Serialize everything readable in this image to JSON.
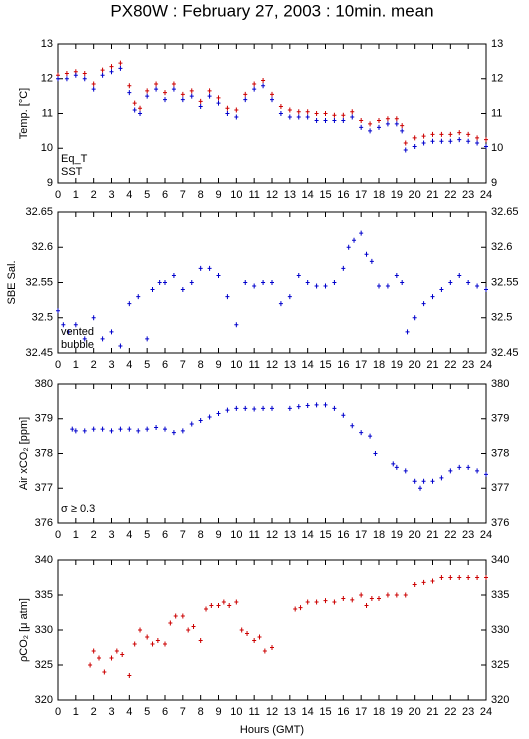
{
  "title": "PX80W : February 27, 2003 : 10min. mean",
  "xlabel": "Hours (GMT)",
  "chart_data": [
    {
      "type": "scatter",
      "ylabel": "Temp. [°C]",
      "xlim": [
        0,
        24
      ],
      "xticks": [
        0,
        1,
        2,
        3,
        4,
        5,
        6,
        7,
        8,
        9,
        10,
        11,
        12,
        13,
        14,
        15,
        16,
        17,
        18,
        19,
        20,
        21,
        22,
        23,
        24
      ],
      "ylim": [
        9,
        13
      ],
      "yticks": [
        9,
        10,
        11,
        12,
        13
      ],
      "x": [
        0,
        0.5,
        1,
        1.5,
        2,
        2.5,
        3,
        3.5,
        4,
        4.3,
        4.6,
        5,
        5.5,
        6,
        6.5,
        7,
        7.5,
        8,
        8.5,
        9,
        9.5,
        10,
        10.5,
        11,
        11.5,
        12,
        12.5,
        13,
        13.5,
        14,
        14.5,
        15,
        15.5,
        16,
        16.5,
        17,
        17.5,
        18,
        18.5,
        19,
        19.3,
        19.5,
        20,
        20.5,
        21,
        21.5,
        22,
        22.5,
        23,
        23.5,
        24
      ],
      "series": [
        {
          "name": "Eq_T",
          "color": "#cc0000",
          "values": [
            12.1,
            12.15,
            12.2,
            12.15,
            11.85,
            12.25,
            12.35,
            12.45,
            11.8,
            11.3,
            11.15,
            11.65,
            11.85,
            11.6,
            11.85,
            11.55,
            11.65,
            11.35,
            11.65,
            11.45,
            11.15,
            11.1,
            11.55,
            11.85,
            11.95,
            11.55,
            11.2,
            11.1,
            11.05,
            11.05,
            11.0,
            11.0,
            10.95,
            10.95,
            11.05,
            10.8,
            10.7,
            10.8,
            10.85,
            10.85,
            10.65,
            10.15,
            10.3,
            10.35,
            10.4,
            10.4,
            10.4,
            10.45,
            10.4,
            10.3,
            10.25
          ]
        },
        {
          "name": "SST",
          "color": "#0000cc",
          "values": [
            12.0,
            12.0,
            12.1,
            12.0,
            11.7,
            12.1,
            12.2,
            12.3,
            11.6,
            11.1,
            11.0,
            11.5,
            11.7,
            11.4,
            11.7,
            11.4,
            11.5,
            11.2,
            11.5,
            11.3,
            11.0,
            10.9,
            11.4,
            11.7,
            11.8,
            11.4,
            11.0,
            10.9,
            10.9,
            10.9,
            10.8,
            10.8,
            10.8,
            10.8,
            10.9,
            10.6,
            10.5,
            10.6,
            10.7,
            10.7,
            10.5,
            9.95,
            10.05,
            10.15,
            10.2,
            10.2,
            10.2,
            10.25,
            10.2,
            10.15,
            10.05
          ]
        }
      ]
    },
    {
      "type": "scatter",
      "ylabel": "SBE Sal.",
      "xlim": [
        0,
        24
      ],
      "xticks": [
        0,
        1,
        2,
        3,
        4,
        5,
        6,
        7,
        8,
        9,
        10,
        11,
        12,
        13,
        14,
        15,
        16,
        17,
        18,
        19,
        20,
        21,
        22,
        23,
        24
      ],
      "ylim": [
        32.45,
        32.65
      ],
      "yticks": [
        32.45,
        32.5,
        32.55,
        32.6,
        32.65
      ],
      "annotations": [
        {
          "text": "vented",
          "color": "#6600cc"
        },
        {
          "text": "bubble",
          "color": "#cc00cc"
        }
      ],
      "x": [
        0,
        0.3,
        0.6,
        1,
        1.5,
        2,
        2.5,
        3,
        3.5,
        4,
        4.5,
        5,
        5.3,
        5.7,
        6,
        6.5,
        7,
        7.5,
        8,
        8.5,
        9,
        9.5,
        10,
        10.5,
        11,
        11.5,
        12,
        12.5,
        13,
        13.5,
        14,
        14.5,
        15,
        15.5,
        16,
        16.3,
        16.6,
        17,
        17.3,
        17.6,
        18,
        18.5,
        19,
        19.3,
        19.6,
        20,
        20.5,
        21,
        21.5,
        22,
        22.5,
        23,
        23.5,
        24
      ],
      "series": [
        {
          "name": "SBE Sal.",
          "color": "#0000cc",
          "values": [
            32.51,
            32.49,
            32.48,
            32.49,
            32.47,
            32.5,
            32.47,
            32.48,
            32.46,
            32.52,
            32.53,
            32.47,
            32.54,
            32.55,
            32.55,
            32.56,
            32.54,
            32.55,
            32.57,
            32.57,
            32.56,
            32.53,
            32.49,
            32.55,
            32.545,
            32.55,
            32.55,
            32.52,
            32.53,
            32.56,
            32.55,
            32.545,
            32.545,
            32.55,
            32.57,
            32.6,
            32.61,
            32.62,
            32.59,
            32.58,
            32.545,
            32.545,
            32.56,
            32.55,
            32.48,
            32.5,
            32.52,
            32.53,
            32.54,
            32.55,
            32.56,
            32.55,
            32.545,
            32.54
          ]
        }
      ]
    },
    {
      "type": "scatter",
      "ylabel": "Air xCO₂ [ppm]",
      "xlim": [
        0,
        24
      ],
      "xticks": [
        0,
        1,
        2,
        3,
        4,
        5,
        6,
        7,
        8,
        9,
        10,
        11,
        12,
        13,
        14,
        15,
        16,
        17,
        18,
        19,
        20,
        21,
        22,
        23,
        24
      ],
      "ylim": [
        376,
        380
      ],
      "yticks": [
        376,
        377,
        378,
        379,
        380
      ],
      "annotations": [
        {
          "text": "σ ≥ 0.3",
          "color": "#cc00cc"
        }
      ],
      "x": [
        0.8,
        1,
        1.5,
        2,
        2.5,
        3,
        3.5,
        4,
        4.5,
        5,
        5.5,
        6,
        6.5,
        7,
        7.5,
        8,
        8.5,
        9,
        9.5,
        10,
        10.5,
        11,
        11.5,
        12,
        13,
        13.5,
        14,
        14.5,
        15,
        15.5,
        16,
        16.5,
        17,
        17.5,
        17.8,
        18.8,
        19,
        19.5,
        20,
        20.3,
        20.5,
        21,
        21.5,
        22,
        22.5,
        23,
        23.5,
        24
      ],
      "series": [
        {
          "name": "Air xCO₂",
          "color": "#0000cc",
          "values": [
            378.7,
            378.65,
            378.65,
            378.7,
            378.7,
            378.65,
            378.7,
            378.7,
            378.65,
            378.7,
            378.75,
            378.7,
            378.6,
            378.65,
            378.85,
            378.95,
            379.05,
            379.15,
            379.25,
            379.3,
            379.3,
            379.28,
            379.3,
            379.3,
            379.3,
            379.35,
            379.38,
            379.4,
            379.4,
            379.3,
            379.1,
            378.8,
            378.6,
            378.5,
            378.0,
            377.7,
            377.6,
            377.5,
            377.2,
            377.0,
            377.2,
            377.2,
            377.3,
            377.5,
            377.6,
            377.6,
            377.5,
            377.4
          ]
        }
      ]
    },
    {
      "type": "scatter",
      "ylabel": "ρCO₂ [μ atm]",
      "xlim": [
        0,
        24
      ],
      "xticks": [
        0,
        1,
        2,
        3,
        4,
        5,
        6,
        7,
        8,
        9,
        10,
        11,
        12,
        13,
        14,
        15,
        16,
        17,
        18,
        19,
        20,
        21,
        22,
        23,
        24
      ],
      "ylim": [
        320,
        340
      ],
      "yticks": [
        320,
        325,
        330,
        335,
        340
      ],
      "x": [
        1.8,
        2,
        2.3,
        2.6,
        3,
        3.3,
        3.6,
        4,
        4.3,
        4.6,
        5,
        5.3,
        5.6,
        6,
        6.3,
        6.6,
        7,
        7.3,
        7.6,
        8,
        8.3,
        8.6,
        9,
        9.3,
        9.6,
        10,
        10.3,
        10.6,
        11,
        11.3,
        11.6,
        12,
        13.3,
        13.6,
        14,
        14.5,
        15,
        15.5,
        16,
        16.5,
        17,
        17.3,
        17.6,
        18,
        18.5,
        19,
        19.5,
        20,
        20.5,
        21,
        21.5,
        22,
        22.5,
        23,
        23.5,
        24
      ],
      "series": [
        {
          "name": "ρCO₂",
          "color": "#cc0000",
          "values": [
            325,
            327,
            326,
            324,
            326,
            327,
            326.5,
            323.5,
            328,
            330,
            329,
            328,
            328.5,
            328,
            331,
            332,
            332,
            330,
            330.5,
            328.5,
            333,
            333.5,
            333.5,
            334,
            333.5,
            334,
            330,
            329.5,
            328.5,
            329,
            327,
            327.5,
            333,
            333.2,
            334,
            334,
            334.2,
            334,
            334.5,
            334.3,
            335,
            333.5,
            334.5,
            334.5,
            335,
            335,
            335,
            336.5,
            336.8,
            337,
            337.5,
            337.5,
            337.5,
            337.5,
            337.5,
            337.5
          ]
        }
      ]
    }
  ]
}
